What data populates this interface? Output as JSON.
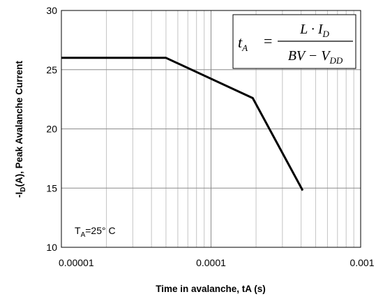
{
  "chart_data": {
    "type": "line",
    "x_scale": "log",
    "xlim": [
      1e-05,
      0.001
    ],
    "ylim": [
      10,
      30
    ],
    "grid": true,
    "xlabel": "Time in avalanche, tA (s)",
    "ylabel": {
      "prefix": "-I",
      "sub": "D",
      "suffix": "(A), Peak Avalanche Current"
    },
    "x_ticks": [
      1e-05,
      0.0001,
      0.001
    ],
    "x_tick_labels": [
      "0.00001",
      "0.0001",
      "0.001"
    ],
    "y_ticks": [
      10,
      15,
      20,
      25,
      30
    ],
    "y_tick_labels": [
      "10",
      "15",
      "20",
      "25",
      "30"
    ],
    "series": [
      {
        "x": [
          1e-05,
          5e-05,
          0.00019,
          0.00041
        ],
        "y": [
          26,
          26,
          22.6,
          14.8
        ]
      }
    ],
    "annotation": {
      "prefix": "T",
      "sub": "A",
      "suffix": "=25° C"
    },
    "equation": {
      "lhs": "t",
      "lhs_sub": "A",
      "eq": "=",
      "numerator_a": "L · I",
      "numerator_sub": "D",
      "denominator_a": "BV − V",
      "denominator_sub": "DD"
    }
  }
}
